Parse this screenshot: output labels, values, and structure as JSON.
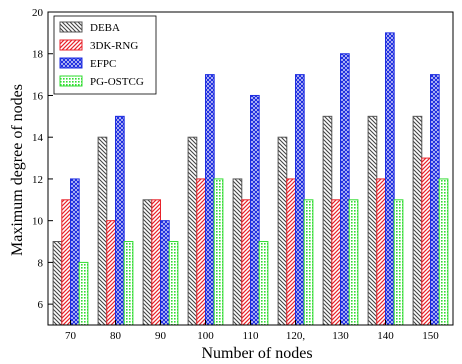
{
  "chart_data": {
    "type": "bar",
    "title": "",
    "xlabel": "Number of nodes",
    "ylabel": "Maximum degree of nodes",
    "categories": [
      "70",
      "80",
      "90",
      "100",
      "110",
      "120,",
      "130",
      "140",
      "150"
    ],
    "ylim": [
      5,
      20
    ],
    "yticks": [
      6,
      8,
      10,
      12,
      14,
      16,
      18,
      20
    ],
    "grid": false,
    "legend_position": "top-left",
    "series": [
      {
        "name": "DEBA",
        "values": [
          9,
          14,
          11,
          14,
          12,
          14,
          15,
          15,
          15
        ],
        "color": "#555555",
        "pattern": "diagonal-down"
      },
      {
        "name": "3DK-RNG",
        "values": [
          11,
          10,
          11,
          12,
          11,
          12,
          11,
          12,
          13
        ],
        "color": "#e8222a",
        "pattern": "diagonal-up"
      },
      {
        "name": "EFPC",
        "values": [
          12,
          15,
          10,
          17,
          16,
          17,
          18,
          19,
          17
        ],
        "color": "#1f2ee0",
        "pattern": "crosshatch"
      },
      {
        "name": "PG-OSTCG",
        "values": [
          8,
          9,
          9,
          12,
          9,
          11,
          11,
          11,
          12
        ],
        "color": "#33dd33",
        "pattern": "dots"
      }
    ]
  }
}
